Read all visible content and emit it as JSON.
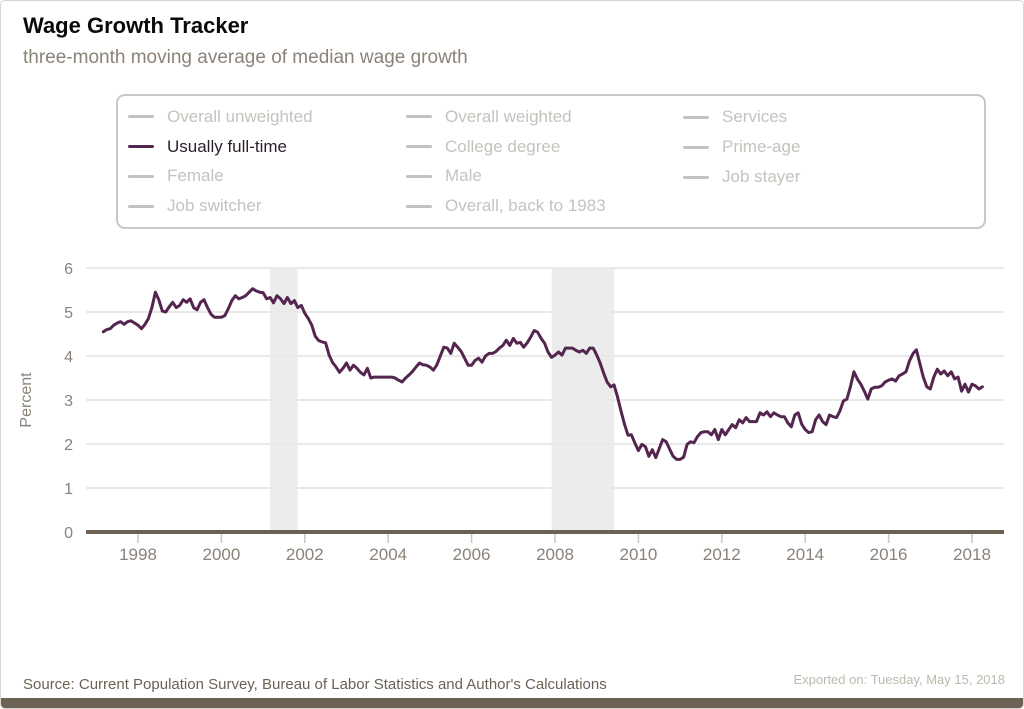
{
  "header": {
    "title": "Wage Growth Tracker",
    "subtitle": "three-month moving average of median wage growth"
  },
  "legend": {
    "inactive_text_color": "#c6c2be",
    "inactive_swatch_color": "#c4c2c0",
    "active_text_color": "#2e1d2b",
    "active_swatch_color": "#53254f",
    "columns": [
      [
        {
          "label": "Overall unweighted",
          "active": false
        },
        {
          "label": "Usually full-time",
          "active": true
        },
        {
          "label": "Female",
          "active": false
        },
        {
          "label": "Job switcher",
          "active": false
        }
      ],
      [
        {
          "label": "Overall weighted",
          "active": false
        },
        {
          "label": "College degree",
          "active": false
        },
        {
          "label": "Male",
          "active": false
        },
        {
          "label": "Overall, back to 1983",
          "active": false
        }
      ],
      [
        {
          "label": "Services",
          "active": false
        },
        {
          "label": "Prime-age",
          "active": false
        },
        {
          "label": "Job stayer",
          "active": false
        }
      ]
    ]
  },
  "chart_data": {
    "type": "line",
    "title": "Wage Growth Tracker",
    "subtitle": "three-month moving average of median wage growth",
    "xlabel": "",
    "ylabel": "Percent",
    "ylim": [
      0,
      6
    ],
    "yticks": [
      0,
      1,
      2,
      3,
      4,
      5,
      6
    ],
    "xticks": [
      1998,
      2000,
      2002,
      2004,
      2006,
      2008,
      2010,
      2012,
      2014,
      2016,
      2018
    ],
    "xlim": [
      1996.9,
      2018.7
    ],
    "grid": true,
    "grid_color": "#e9e9e9",
    "band_color": "#ececec",
    "axis_color": "#6b6254",
    "axis_label_color": "#8b8279",
    "tick_color": "#c9c7c4",
    "legend_position": "top",
    "recession_bands": [
      [
        2001.17,
        2001.83
      ],
      [
        2007.92,
        2009.42
      ]
    ],
    "series": [
      {
        "name": "Usually full-time",
        "color": "#53254f",
        "frequency": "monthly",
        "start_year": 1997,
        "start_month": 3,
        "values": [
          4.55,
          4.6,
          4.62,
          4.7,
          4.75,
          4.78,
          4.72,
          4.78,
          4.8,
          4.75,
          4.7,
          4.62,
          4.72,
          4.85,
          5.1,
          5.45,
          5.28,
          5.02,
          5.0,
          5.12,
          5.22,
          5.1,
          5.15,
          5.28,
          5.22,
          5.3,
          5.1,
          5.05,
          5.22,
          5.28,
          5.1,
          4.95,
          4.88,
          4.88,
          4.88,
          4.92,
          5.08,
          5.26,
          5.37,
          5.3,
          5.33,
          5.37,
          5.45,
          5.53,
          5.48,
          5.45,
          5.44,
          5.3,
          5.33,
          5.21,
          5.37,
          5.3,
          5.19,
          5.33,
          5.19,
          5.26,
          5.1,
          5.15,
          4.97,
          4.85,
          4.7,
          4.45,
          4.35,
          4.32,
          4.3,
          4.02,
          3.85,
          3.75,
          3.63,
          3.72,
          3.84,
          3.68,
          3.79,
          3.72,
          3.63,
          3.57,
          3.72,
          3.5,
          3.52,
          3.52,
          3.52,
          3.52,
          3.52,
          3.52,
          3.5,
          3.45,
          3.41,
          3.5,
          3.57,
          3.65,
          3.75,
          3.84,
          3.8,
          3.79,
          3.75,
          3.68,
          3.8,
          4.0,
          4.2,
          4.18,
          4.06,
          4.29,
          4.2,
          4.1,
          3.95,
          3.79,
          3.79,
          3.9,
          3.95,
          3.86,
          4.0,
          4.06,
          4.06,
          4.1,
          4.18,
          4.24,
          4.36,
          4.24,
          4.4,
          4.29,
          4.31,
          4.2,
          4.3,
          4.43,
          4.58,
          4.54,
          4.4,
          4.29,
          4.09,
          3.97,
          4.02,
          4.09,
          4.02,
          4.18,
          4.18,
          4.18,
          4.13,
          4.09,
          4.13,
          4.06,
          4.18,
          4.18,
          4.02,
          3.84,
          3.61,
          3.41,
          3.3,
          3.34,
          3.07,
          2.75,
          2.45,
          2.2,
          2.21,
          2.02,
          1.85,
          1.99,
          1.94,
          1.72,
          1.87,
          1.69,
          1.9,
          2.1,
          2.05,
          1.88,
          1.72,
          1.65,
          1.65,
          1.7,
          1.99,
          2.05,
          2.03,
          2.17,
          2.26,
          2.28,
          2.28,
          2.21,
          2.33,
          2.1,
          2.33,
          2.21,
          2.33,
          2.44,
          2.37,
          2.55,
          2.48,
          2.6,
          2.51,
          2.51,
          2.51,
          2.71,
          2.66,
          2.73,
          2.62,
          2.71,
          2.66,
          2.62,
          2.62,
          2.48,
          2.39,
          2.66,
          2.71,
          2.45,
          2.33,
          2.26,
          2.28,
          2.55,
          2.66,
          2.51,
          2.44,
          2.66,
          2.62,
          2.6,
          2.75,
          2.98,
          3.02,
          3.3,
          3.64,
          3.48,
          3.36,
          3.2,
          3.02,
          3.25,
          3.29,
          3.29,
          3.32,
          3.41,
          3.45,
          3.48,
          3.43,
          3.55,
          3.59,
          3.64,
          3.89,
          4.05,
          4.14,
          3.82,
          3.52,
          3.3,
          3.25,
          3.52,
          3.7,
          3.59,
          3.66,
          3.55,
          3.64,
          3.48,
          3.52,
          3.2,
          3.36,
          3.18,
          3.36,
          3.32,
          3.25,
          3.3
        ]
      }
    ]
  },
  "footer": {
    "source": "Source: Current Population Survey, Bureau of Labor Statistics and Author's Calculations",
    "exported": "Exported on: Tuesday, May 15, 2018"
  }
}
